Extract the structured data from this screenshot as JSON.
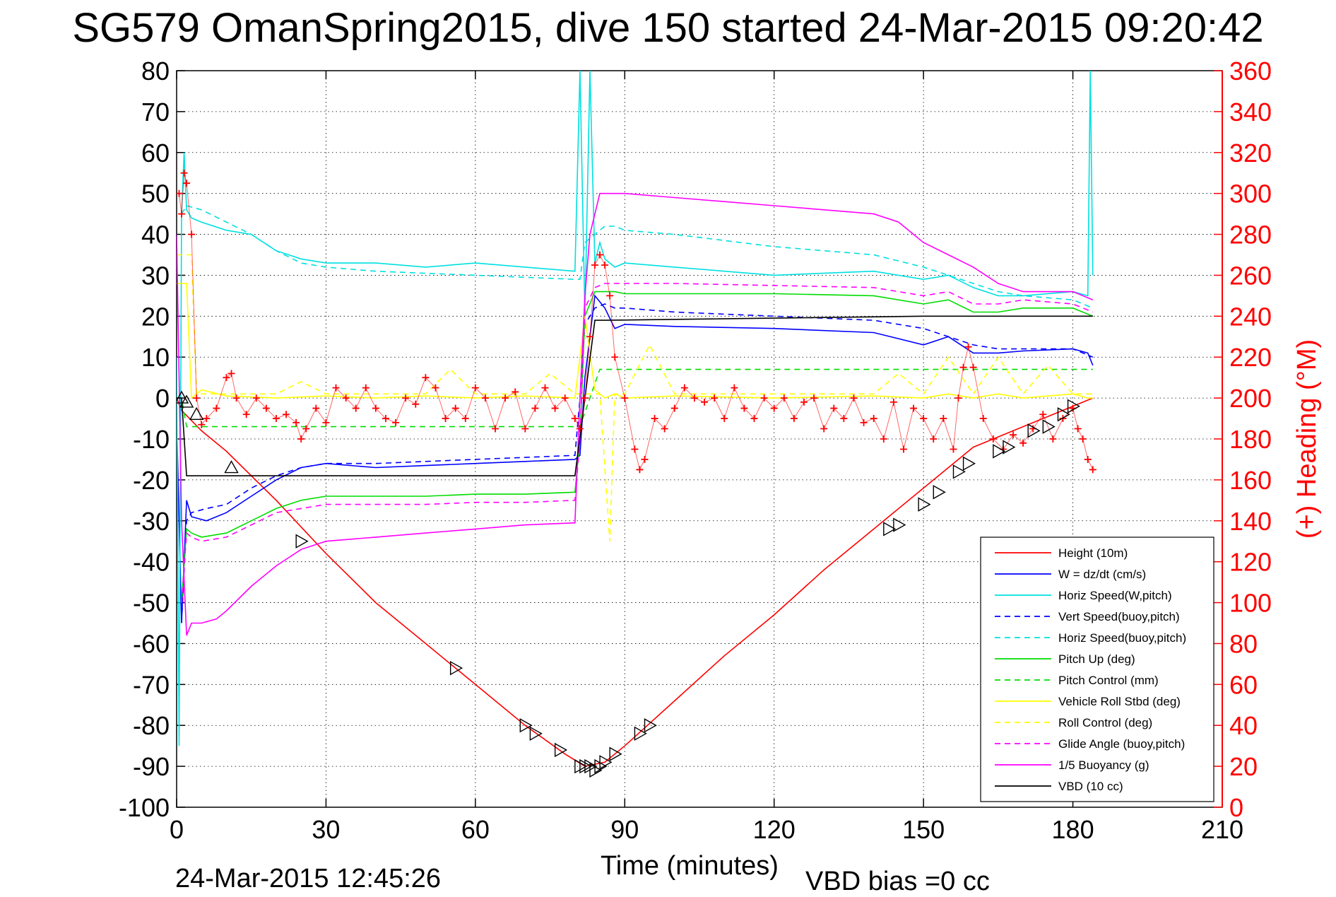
{
  "chart_data": {
    "type": "line",
    "title": "SG579 OmanSpring2015, dive 150 started 24-Mar-2015 09:20:42",
    "xlabel": "Time (minutes)",
    "ylabel": "",
    "y2label": "(+) Heading (°M)",
    "footer_left": "24-Mar-2015 12:45:26",
    "footer_right": "VBD bias =0 cc",
    "xlim": [
      0,
      210
    ],
    "ylim": [
      -100,
      80
    ],
    "y2lim": [
      0,
      360
    ],
    "xticks": [
      0,
      30,
      60,
      90,
      120,
      150,
      180,
      210
    ],
    "yticks": [
      80,
      70,
      60,
      50,
      40,
      30,
      20,
      10,
      0,
      -10,
      -20,
      -30,
      -40,
      -50,
      -60,
      -70,
      -80,
      -90,
      -100
    ],
    "y2ticks": [
      360,
      340,
      320,
      300,
      280,
      260,
      240,
      220,
      200,
      180,
      160,
      140,
      120,
      100,
      80,
      60,
      40,
      20,
      0
    ],
    "grid": true,
    "legend_position": "bottom-right",
    "series": [
      {
        "name": "Height (10m)",
        "color": "#ff0000",
        "style": "solid",
        "x": [
          0,
          1,
          5,
          10,
          20,
          30,
          40,
          50,
          60,
          70,
          78,
          82,
          86,
          90,
          100,
          110,
          120,
          130,
          140,
          150,
          160,
          170,
          180,
          184
        ],
        "y": [
          0,
          -3,
          -8,
          -13,
          -25,
          -38,
          -50,
          -60,
          -70,
          -80,
          -87,
          -90,
          -89,
          -85,
          -74,
          -63,
          -53,
          -42,
          -32,
          -22,
          -12,
          -7,
          -2,
          0
        ]
      },
      {
        "name": "W = dz/dt (cm/s)",
        "color": "#0000ff",
        "style": "solid",
        "x": [
          0,
          1,
          2,
          3,
          6,
          10,
          15,
          20,
          25,
          30,
          40,
          50,
          60,
          70,
          80,
          81,
          82,
          84,
          86,
          88,
          90,
          100,
          120,
          140,
          150,
          155,
          160,
          165,
          170,
          180,
          183,
          184
        ],
        "y": [
          -5,
          -55,
          -25,
          -29,
          -30,
          -28,
          -24,
          -20,
          -17,
          -16,
          -17,
          -16.5,
          -16,
          -15.5,
          -15,
          -14,
          5,
          25,
          22,
          17,
          18,
          17.5,
          17,
          16,
          13,
          15,
          11,
          11,
          11.5,
          12,
          11,
          8
        ]
      },
      {
        "name": "Horiz Speed(W,pitch)",
        "color": "#00e0e0",
        "style": "solid",
        "x": [
          0,
          0.5,
          1,
          1.5,
          2,
          3,
          5,
          10,
          15,
          20,
          25,
          30,
          40,
          50,
          60,
          70,
          80,
          81,
          82,
          83,
          84,
          85,
          86,
          88,
          90,
          100,
          120,
          140,
          150,
          155,
          160,
          165,
          170,
          180,
          183,
          183.5,
          184
        ],
        "y": [
          10,
          -85,
          45,
          60,
          46,
          44,
          43,
          41,
          40,
          36,
          34,
          33,
          33,
          32,
          33,
          32,
          31,
          80,
          20,
          80,
          33,
          38,
          34,
          32,
          33,
          32,
          30,
          31,
          29,
          30,
          27,
          25,
          25,
          26,
          25,
          80,
          30
        ]
      },
      {
        "name": "Vert Speed(buoy,pitch)",
        "color": "#0000ff",
        "style": "dashed",
        "x": [
          1,
          2,
          3,
          6,
          10,
          15,
          20,
          25,
          30,
          40,
          50,
          60,
          70,
          80,
          81,
          82,
          84,
          86,
          88,
          90,
          100,
          120,
          140,
          150,
          155,
          160,
          165,
          170,
          180,
          184
        ],
        "y": [
          -55,
          -30,
          -28,
          -27,
          -26,
          -22,
          -19,
          -17,
          -16,
          -16,
          -15.5,
          -15,
          -14.5,
          -14,
          0,
          18,
          22,
          23,
          22,
          22,
          21,
          20,
          19,
          17,
          15,
          13,
          12,
          12,
          12,
          10
        ]
      },
      {
        "name": "Horiz Speed(buoy,pitch)",
        "color": "#00e0e0",
        "style": "dashed",
        "x": [
          1,
          2,
          5,
          10,
          15,
          20,
          25,
          30,
          40,
          50,
          60,
          70,
          80,
          81,
          82,
          84,
          86,
          88,
          90,
          100,
          120,
          140,
          150,
          155,
          160,
          165,
          170,
          180,
          184
        ],
        "y": [
          45,
          47,
          46,
          43,
          40,
          36,
          33,
          32,
          31,
          30.5,
          30,
          29.5,
          29,
          29,
          38,
          40,
          42,
          42,
          41,
          40,
          37,
          35,
          32,
          30,
          28,
          26,
          25,
          24,
          22
        ]
      },
      {
        "name": "Pitch Up (deg)",
        "color": "#00dd00",
        "style": "solid",
        "x": [
          1,
          2,
          3,
          5,
          10,
          15,
          20,
          25,
          30,
          40,
          50,
          60,
          70,
          80,
          81,
          82,
          84,
          86,
          88,
          90,
          100,
          120,
          140,
          150,
          155,
          160,
          165,
          170,
          180,
          184
        ],
        "y": [
          -50,
          -32,
          -33,
          -34,
          -33,
          -30,
          -27,
          -25,
          -24,
          -24,
          -24,
          -23.5,
          -23.5,
          -23,
          -10,
          20,
          26,
          26,
          26,
          25.5,
          25.5,
          25.5,
          25,
          23,
          24,
          21,
          21,
          22,
          22,
          20
        ]
      },
      {
        "name": "Pitch Control (mm)",
        "color": "#00dd00",
        "style": "dashed",
        "x": [
          0,
          1,
          2,
          80,
          81,
          85,
          90,
          184
        ],
        "y": [
          0,
          0,
          -7,
          -7,
          -7,
          7,
          7,
          7
        ]
      },
      {
        "name": "Vehicle Roll Stbd (deg)",
        "color": "#ffff00",
        "style": "solid",
        "x": [
          0,
          2,
          3,
          4,
          5,
          10,
          20,
          30,
          40,
          50,
          60,
          70,
          80,
          82,
          84,
          86,
          88,
          90,
          100,
          120,
          140,
          150,
          155,
          160,
          165,
          170,
          180,
          183,
          184
        ],
        "y": [
          28,
          28,
          0,
          1,
          2,
          0.5,
          0,
          0.5,
          0,
          0.5,
          0,
          0.5,
          0,
          20,
          2,
          0,
          1,
          0,
          0.5,
          0,
          0.5,
          0,
          1,
          0,
          1,
          0,
          1,
          0,
          0
        ]
      },
      {
        "name": "Roll Control (deg)",
        "color": "#ffff00",
        "style": "dashed",
        "x": [
          0,
          3,
          4,
          10,
          20,
          25,
          30,
          50,
          55,
          60,
          70,
          75,
          80,
          85,
          87,
          88,
          89,
          90,
          95,
          100,
          120,
          140,
          145,
          150,
          155,
          160,
          165,
          170,
          175,
          180,
          184
        ],
        "y": [
          35,
          35,
          1,
          1,
          1,
          4,
          1,
          1,
          7,
          1,
          1,
          6,
          1,
          1,
          -35,
          1,
          1,
          1,
          13,
          1,
          1,
          1,
          6,
          1,
          10,
          1,
          10,
          1,
          8,
          1,
          1
        ]
      },
      {
        "name": "Glide Angle (buoy,pitch)",
        "color": "#ff00ff",
        "style": "dashed",
        "x": [
          1,
          2,
          3,
          5,
          10,
          15,
          20,
          25,
          30,
          40,
          50,
          60,
          70,
          80,
          81,
          82,
          84,
          86,
          88,
          90,
          100,
          120,
          140,
          150,
          155,
          160,
          165,
          170,
          180,
          184
        ],
        "y": [
          -50,
          -33,
          -34,
          -35,
          -34,
          -31,
          -28,
          -27,
          -26,
          -26,
          -26,
          -25.5,
          -25.5,
          -25,
          -10,
          22,
          27,
          28,
          28,
          28,
          28,
          27.5,
          27,
          25,
          26,
          23,
          23,
          24,
          23,
          21
        ]
      },
      {
        "name": "1/5 Buoyancy (g)",
        "color": "#ff00ff",
        "style": "solid",
        "x": [
          0,
          1,
          2,
          3,
          5,
          8,
          10,
          15,
          20,
          25,
          30,
          40,
          50,
          60,
          70,
          80,
          81,
          82,
          83,
          85,
          86,
          90,
          100,
          110,
          120,
          130,
          140,
          145,
          150,
          155,
          160,
          165,
          170,
          180,
          184
        ],
        "y": [
          40,
          -30,
          -58,
          -55,
          -55,
          -54,
          -52,
          -46,
          -41,
          -37,
          -35,
          -34,
          -33,
          -32,
          -31,
          -30.5,
          0,
          25,
          40,
          50,
          50,
          50,
          49,
          48,
          47,
          46,
          45,
          43,
          38,
          35,
          32,
          28,
          26,
          26,
          24
        ]
      },
      {
        "name": "VBD (10 cc)",
        "color": "#000000",
        "style": "solid",
        "x": [
          0,
          1,
          2,
          80,
          82,
          84,
          86,
          150,
          184
        ],
        "y": [
          0,
          0,
          -19,
          -19,
          0,
          19,
          19,
          20,
          20
        ]
      }
    ],
    "heading_series": {
      "name": "(+) Heading (°M)",
      "color": "#ff0000",
      "marker": "+",
      "axis": "right",
      "x": [
        0.5,
        1,
        1.5,
        2,
        3,
        4,
        5,
        6,
        8,
        10,
        11,
        12,
        14,
        16,
        18,
        20,
        22,
        24,
        25,
        26,
        28,
        30,
        32,
        34,
        36,
        38,
        40,
        42,
        44,
        46,
        48,
        50,
        52,
        54,
        56,
        58,
        60,
        62,
        64,
        66,
        68,
        70,
        72,
        74,
        76,
        78,
        80,
        81,
        82,
        83,
        84,
        85,
        86,
        87,
        88,
        90,
        92,
        93,
        94,
        96,
        98,
        100,
        102,
        104,
        106,
        108,
        110,
        112,
        114,
        116,
        118,
        120,
        122,
        124,
        126,
        128,
        130,
        132,
        134,
        136,
        138,
        140,
        142,
        144,
        146,
        148,
        150,
        152,
        154,
        156,
        157,
        158,
        159,
        160,
        162,
        164,
        166,
        168,
        170,
        172,
        174,
        176,
        178,
        180,
        181,
        182,
        183,
        184
      ],
      "y": [
        300,
        290,
        310,
        305,
        280,
        200,
        187,
        190,
        195,
        210,
        212,
        200,
        192,
        200,
        195,
        190,
        192,
        188,
        180,
        185,
        195,
        188,
        205,
        200,
        195,
        205,
        195,
        190,
        188,
        200,
        197,
        210,
        205,
        190,
        195,
        190,
        205,
        200,
        185,
        200,
        203,
        185,
        195,
        205,
        195,
        200,
        190,
        185,
        200,
        230,
        265,
        270,
        265,
        250,
        220,
        200,
        175,
        165,
        170,
        190,
        185,
        195,
        205,
        200,
        198,
        200,
        190,
        205,
        195,
        190,
        200,
        195,
        200,
        190,
        198,
        200,
        185,
        195,
        190,
        200,
        188,
        190,
        180,
        198,
        175,
        195,
        190,
        180,
        190,
        175,
        200,
        215,
        225,
        215,
        190,
        180,
        175,
        182,
        178,
        185,
        192,
        180,
        190,
        195,
        185,
        180,
        170,
        165
      ]
    },
    "triangles": {
      "color": "#000000",
      "x": [
        1,
        2,
        4,
        11,
        25,
        56,
        70,
        72,
        77,
        81,
        82,
        83,
        84,
        85,
        86,
        88,
        93,
        95,
        143,
        145,
        150,
        153,
        157,
        159,
        165,
        167,
        172,
        175,
        178,
        180
      ],
      "y": [
        0,
        -1,
        -4,
        -17,
        -35,
        -66,
        -80,
        -82,
        -86,
        -90,
        -90,
        -90,
        -91,
        -90,
        -89,
        -87,
        -82,
        -80,
        -32,
        -31,
        -26,
        -23,
        -18,
        -16,
        -13,
        -12,
        -8,
        -7,
        -4,
        -2
      ]
    }
  }
}
